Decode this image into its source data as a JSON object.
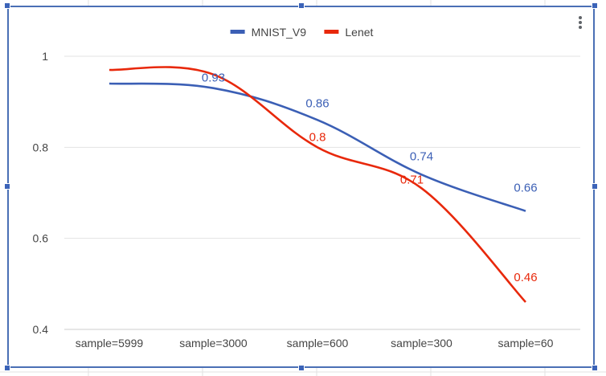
{
  "chart_data": {
    "type": "line",
    "categories": [
      "sample=5999",
      "sample=3000",
      "sample=600",
      "sample=300",
      "sample=60"
    ],
    "series": [
      {
        "name": "MNIST_V9",
        "color": "#3b5fb5",
        "values": [
          0.94,
          0.93,
          0.86,
          0.74,
          0.66
        ],
        "labels": [
          "",
          "0.93",
          "0.86",
          "0.74",
          "0.66"
        ]
      },
      {
        "name": "Lenet",
        "color": "#e8280b",
        "values": [
          0.97,
          0.96,
          0.8,
          0.71,
          0.46
        ],
        "labels": [
          "",
          "",
          "0.8",
          "0.71",
          "0.46"
        ]
      }
    ],
    "y_ticks": [
      "1",
      "0.8",
      "0.6",
      "0.4"
    ],
    "y_tick_values": [
      1,
      0.8,
      0.6,
      0.4
    ],
    "ylim": [
      0.4,
      1.0
    ],
    "grid": true,
    "legend_position": "top-center",
    "curve": "smooth"
  },
  "menu": {
    "icon": "more-vert-icon"
  }
}
